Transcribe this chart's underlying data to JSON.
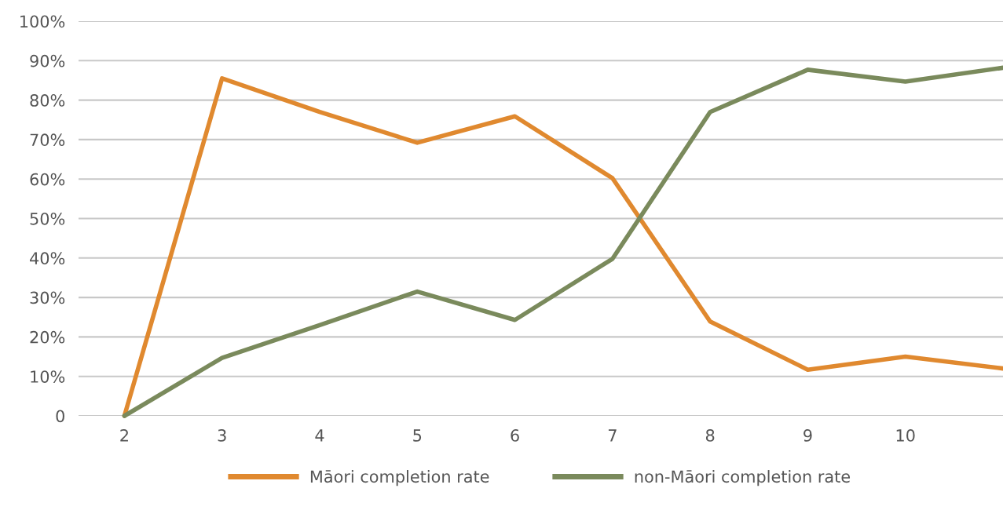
{
  "chart_data": {
    "type": "line",
    "categories": [
      "2",
      "3",
      "4",
      "5",
      "6",
      "7",
      "8",
      "9",
      "10",
      null
    ],
    "series": [
      {
        "name": "Māori completion rate",
        "color": "#e0892f",
        "values": [
          0,
          85.5,
          77,
          69.2,
          75.9,
          60.2,
          23.9,
          11.7,
          15,
          12
        ]
      },
      {
        "name": "non-Māori completion rate",
        "color": "#7a8a5c",
        "values": [
          0,
          14.7,
          23,
          31.5,
          24.3,
          39.8,
          77,
          87.7,
          84.7,
          88.2
        ]
      }
    ],
    "ylim": [
      0,
      100
    ],
    "yticks": [
      {
        "value": 0,
        "label": "0"
      },
      {
        "value": 10,
        "label": "10%"
      },
      {
        "value": 20,
        "label": "20%"
      },
      {
        "value": 30,
        "label": "30%"
      },
      {
        "value": 40,
        "label": "40%"
      },
      {
        "value": 50,
        "label": "50%"
      },
      {
        "value": 60,
        "label": "60%"
      },
      {
        "value": 70,
        "label": "70%"
      },
      {
        "value": 80,
        "label": "80%"
      },
      {
        "value": 90,
        "label": "90%"
      },
      {
        "value": 100,
        "label": "100%"
      }
    ],
    "grid": "y",
    "legend": "bottom",
    "marker": "none",
    "line_style": "solid"
  }
}
